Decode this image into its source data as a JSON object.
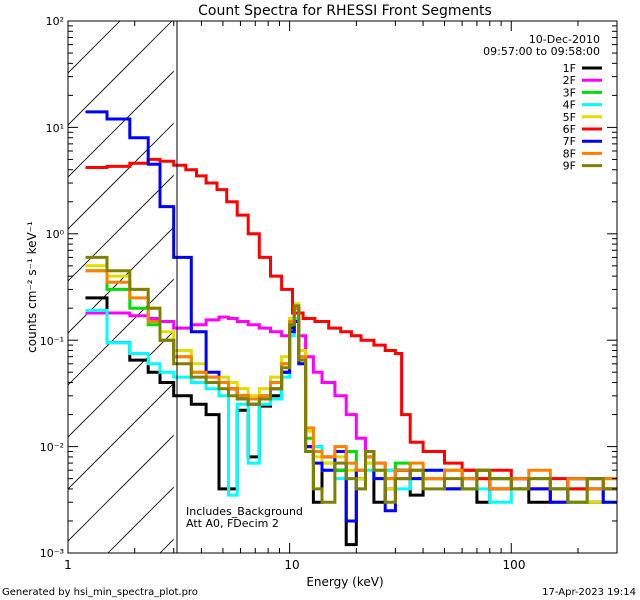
{
  "chart_data": {
    "type": "line",
    "title": "Count Spectra for RHESSI Front Segments",
    "xlabel": "Energy (keV)",
    "ylabel": "counts cm⁻² s⁻¹ keV⁻¹",
    "xscale": "log",
    "yscale": "log",
    "xlim": [
      1,
      300
    ],
    "ylim": [
      0.001,
      100
    ],
    "x_tick_labels": [
      "1",
      "10",
      "100"
    ],
    "y_tick_labels": [
      "10⁻³",
      "10⁻²",
      "10⁻¹",
      "10⁰",
      "10¹",
      "10²"
    ],
    "hatched_region_max_keV": 3,
    "legend_position": "top-right",
    "date_label": "10-Dec-2010",
    "time_label": "09:57:00 to 09:58:00",
    "annotations": [
      "Includes_Background",
      "Att A0, FDecim 2"
    ],
    "footer_left": "Generated by hsi_min_spectra_plot.pro",
    "footer_right": "17-Apr-2023 19:14",
    "series": [
      {
        "name": "1F",
        "color": "#000000",
        "x": [
          1.2,
          1.5,
          1.9,
          2.3,
          2.6,
          3.0,
          3.6,
          4.2,
          4.8,
          5.3,
          5.8,
          6.5,
          7.3,
          8.2,
          9.2,
          10.0,
          10.5,
          11.0,
          11.8,
          12.8,
          14,
          16,
          18,
          20,
          22,
          24,
          27,
          30,
          35,
          40,
          50,
          60,
          70,
          80,
          100,
          120,
          150,
          180,
          220,
          260
        ],
        "y": [
          0.25,
          0.095,
          0.065,
          0.05,
          0.04,
          0.03,
          0.025,
          0.02,
          0.004,
          0.004,
          0.022,
          0.008,
          0.024,
          0.03,
          0.05,
          0.13,
          0.2,
          0.08,
          0.01,
          0.003,
          0.008,
          0.006,
          0.0012,
          0.005,
          0.009,
          0.003,
          0.004,
          0.006,
          0.0035,
          0.005,
          0.004,
          0.006,
          0.003,
          0.005,
          0.004,
          0.003,
          0.004,
          0.005,
          0.003,
          0.004
        ]
      },
      {
        "name": "2F",
        "color": "#ff00ff",
        "x": [
          1.2,
          1.5,
          1.9,
          2.3,
          2.6,
          3.0,
          3.6,
          4.2,
          4.8,
          5.3,
          5.8,
          6.5,
          7.3,
          8.2,
          9.2,
          10.0,
          10.5,
          11.0,
          11.8,
          12.8,
          14,
          16,
          18,
          20,
          22,
          24,
          27,
          30,
          35,
          40,
          50,
          60,
          70,
          80,
          100,
          120,
          150,
          180,
          220,
          260
        ],
        "y": [
          0.18,
          0.18,
          0.17,
          0.16,
          0.15,
          0.13,
          0.14,
          0.155,
          0.165,
          0.16,
          0.15,
          0.14,
          0.13,
          0.12,
          0.11,
          0.15,
          0.2,
          0.11,
          0.07,
          0.05,
          0.04,
          0.03,
          0.02,
          0.012,
          0.009,
          0.007,
          0.006,
          0.005,
          0.006,
          0.005,
          0.004,
          0.006,
          0.005,
          0.004,
          0.005,
          0.004,
          0.003,
          0.004,
          0.005,
          0.004
        ]
      },
      {
        "name": "3F",
        "color": "#00dd00",
        "x": [
          1.2,
          1.5,
          1.9,
          2.3,
          2.6,
          3.0,
          3.6,
          4.2,
          4.8,
          5.3,
          5.8,
          6.5,
          7.3,
          8.2,
          9.2,
          10.0,
          10.5,
          11.0,
          11.8,
          12.8,
          14,
          16,
          18,
          20,
          22,
          24,
          27,
          30,
          35,
          40,
          50,
          60,
          70,
          80,
          100,
          120,
          150,
          180,
          220,
          260
        ],
        "y": [
          0.45,
          0.3,
          0.2,
          0.14,
          0.1,
          0.07,
          0.05,
          0.045,
          0.04,
          0.035,
          0.03,
          0.028,
          0.03,
          0.04,
          0.06,
          0.14,
          0.18,
          0.07,
          0.012,
          0.01,
          0.007,
          0.006,
          0.009,
          0.005,
          0.007,
          0.006,
          0.005,
          0.007,
          0.006,
          0.005,
          0.006,
          0.004,
          0.006,
          0.005,
          0.004,
          0.005,
          0.004,
          0.003,
          0.004,
          0.005
        ]
      },
      {
        "name": "4F",
        "color": "#00ffff",
        "x": [
          1.2,
          1.5,
          1.9,
          2.3,
          2.6,
          3.0,
          3.6,
          4.2,
          4.8,
          5.3,
          5.8,
          6.5,
          7.3,
          8.2,
          9.2,
          10.0,
          10.5,
          11.0,
          11.8,
          12.8,
          14,
          16,
          18,
          20,
          22,
          24,
          27,
          30,
          35,
          40,
          50,
          60,
          70,
          80,
          100,
          120,
          150,
          180,
          220,
          260
        ],
        "y": [
          0.19,
          0.095,
          0.075,
          0.06,
          0.05,
          0.045,
          0.04,
          0.035,
          0.03,
          0.0035,
          0.025,
          0.007,
          0.025,
          0.028,
          0.045,
          0.11,
          0.16,
          0.06,
          0.009,
          0.01,
          0.006,
          0.005,
          0.007,
          0.004,
          0.006,
          0.005,
          0.006,
          0.004,
          0.005,
          0.006,
          0.004,
          0.005,
          0.004,
          0.003,
          0.005,
          0.004,
          0.005,
          0.003,
          0.004,
          0.003
        ]
      },
      {
        "name": "5F",
        "color": "#dddd00",
        "x": [
          1.2,
          1.5,
          1.9,
          2.3,
          2.6,
          3.0,
          3.6,
          4.2,
          4.8,
          5.3,
          5.8,
          6.5,
          7.3,
          8.2,
          9.2,
          10.0,
          10.5,
          11.0,
          11.8,
          12.8,
          14,
          16,
          18,
          20,
          22,
          24,
          27,
          30,
          35,
          40,
          50,
          60,
          70,
          80,
          100,
          120,
          150,
          180,
          220,
          260
        ],
        "y": [
          0.5,
          0.4,
          0.3,
          0.2,
          0.12,
          0.08,
          0.06,
          0.05,
          0.045,
          0.04,
          0.035,
          0.03,
          0.035,
          0.045,
          0.07,
          0.16,
          0.22,
          0.08,
          0.014,
          0.008,
          0.007,
          0.008,
          0.006,
          0.005,
          0.007,
          0.006,
          0.004,
          0.005,
          0.006,
          0.005,
          0.004,
          0.006,
          0.005,
          0.004,
          0.005,
          0.004,
          0.005,
          0.004,
          0.003,
          0.004
        ]
      },
      {
        "name": "6F",
        "color": "#ff0000",
        "x": [
          1.2,
          1.5,
          1.9,
          2.3,
          2.6,
          3.0,
          3.4,
          3.8,
          4.2,
          4.7,
          5.2,
          5.8,
          6.5,
          7.3,
          8.2,
          9.2,
          10.3,
          11.5,
          13,
          15,
          17,
          19,
          21,
          24,
          27,
          30,
          32,
          35,
          40,
          50,
          60,
          70,
          80,
          100,
          120,
          150,
          180,
          220,
          260
        ],
        "y": [
          4.2,
          4.3,
          4.6,
          5.0,
          4.8,
          4.4,
          4.0,
          3.5,
          3.0,
          2.6,
          2.0,
          1.5,
          1.0,
          0.6,
          0.4,
          0.3,
          0.18,
          0.16,
          0.15,
          0.13,
          0.12,
          0.11,
          0.1,
          0.09,
          0.08,
          0.075,
          0.02,
          0.011,
          0.009,
          0.007,
          0.006,
          0.005,
          0.006,
          0.005,
          0.004,
          0.005,
          0.004,
          0.005,
          0.004
        ]
      },
      {
        "name": "7F",
        "color": "#0000ff",
        "x": [
          1.2,
          1.5,
          1.9,
          2.3,
          2.6,
          3.0,
          3.6,
          4.2,
          4.8,
          5.3,
          5.8,
          6.5,
          7.3,
          8.2,
          9.2,
          10.0,
          10.5,
          11.0,
          11.8,
          12.8,
          14,
          16,
          18,
          20,
          22,
          24,
          27,
          30,
          35,
          40,
          50,
          60,
          70,
          80,
          100,
          120,
          150,
          180,
          220,
          260
        ],
        "y": [
          14,
          12,
          8,
          4.5,
          1.8,
          0.6,
          0.12,
          0.05,
          0.04,
          0.035,
          0.03,
          0.025,
          0.028,
          0.035,
          0.05,
          0.12,
          0.15,
          0.06,
          0.01,
          0.007,
          0.006,
          0.009,
          0.002,
          0.006,
          0.008,
          0.005,
          0.0025,
          0.006,
          0.005,
          0.006,
          0.004,
          0.005,
          0.006,
          0.004,
          0.005,
          0.004,
          0.003,
          0.005,
          0.004,
          0.003
        ]
      },
      {
        "name": "8F",
        "color": "#ff8000",
        "x": [
          1.2,
          1.5,
          1.9,
          2.3,
          2.6,
          3.0,
          3.6,
          4.2,
          4.8,
          5.3,
          5.8,
          6.5,
          7.3,
          8.2,
          9.2,
          10.0,
          10.5,
          11.0,
          11.8,
          12.8,
          14,
          16,
          18,
          20,
          22,
          24,
          27,
          30,
          35,
          40,
          50,
          60,
          70,
          80,
          100,
          120,
          150,
          180,
          220,
          260
        ],
        "y": [
          0.45,
          0.35,
          0.25,
          0.15,
          0.1,
          0.07,
          0.05,
          0.045,
          0.04,
          0.035,
          0.03,
          0.028,
          0.03,
          0.04,
          0.06,
          0.15,
          0.2,
          0.07,
          0.015,
          0.009,
          0.008,
          0.01,
          0.007,
          0.006,
          0.008,
          0.007,
          0.005,
          0.006,
          0.007,
          0.005,
          0.006,
          0.005,
          0.006,
          0.004,
          0.005,
          0.006,
          0.004,
          0.005,
          0.004,
          0.005
        ]
      },
      {
        "name": "9F",
        "color": "#808000",
        "x": [
          1.2,
          1.5,
          1.9,
          2.3,
          2.6,
          3.0,
          3.6,
          4.2,
          4.8,
          5.3,
          5.8,
          6.5,
          7.3,
          8.2,
          9.2,
          10.0,
          10.5,
          11.0,
          11.8,
          12.8,
          14,
          16,
          18,
          20,
          22,
          24,
          27,
          30,
          35,
          40,
          50,
          60,
          70,
          80,
          100,
          120,
          150,
          180,
          220,
          260
        ],
        "y": [
          0.6,
          0.45,
          0.3,
          0.2,
          0.1,
          0.06,
          0.045,
          0.04,
          0.035,
          0.03,
          0.028,
          0.025,
          0.028,
          0.035,
          0.055,
          0.14,
          0.21,
          0.065,
          0.009,
          0.004,
          0.003,
          0.007,
          0.005,
          0.004,
          0.009,
          0.006,
          0.003,
          0.005,
          0.006,
          0.004,
          0.005,
          0.004,
          0.006,
          0.005,
          0.004,
          0.005,
          0.004,
          0.003,
          0.005,
          0.004
        ]
      }
    ]
  }
}
